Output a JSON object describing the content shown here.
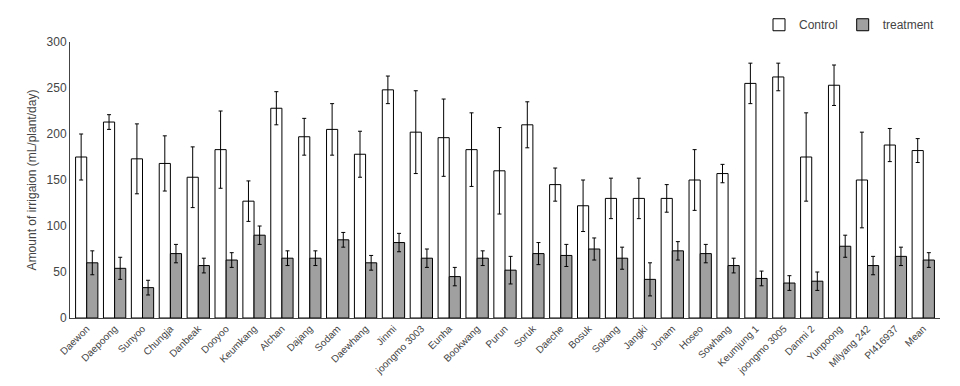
{
  "chart_data": {
    "type": "bar",
    "categories": [
      "Daewon",
      "Daepoong",
      "Sunyoo",
      "Chungja",
      "Danbeak",
      "Dooyoo",
      "Keumkang",
      "Alchan",
      "Dajang",
      "Sodam",
      "Daewhang",
      "Jinmi",
      "joongmo 3003",
      "Eunha",
      "Bookwang",
      "Purun",
      "Soruk",
      "Daeche",
      "Bosuk",
      "Sokang",
      "Jangki",
      "Jonam",
      "Hoseo",
      "Sowhang",
      "Keumjung 1",
      "joongmo 3005",
      "Danmi 2",
      "Yunpoong",
      "Milyang 242",
      "PI416937",
      "Mean"
    ],
    "series": [
      {
        "name": "Control",
        "color": "#FFFFFF",
        "values": [
          175,
          213,
          173,
          168,
          153,
          183,
          127,
          228,
          197,
          205,
          178,
          248,
          202,
          196,
          183,
          160,
          210,
          145,
          122,
          130,
          130,
          130,
          150,
          157,
          255,
          262,
          175,
          253,
          150,
          188,
          182
        ],
        "errors": [
          25,
          8,
          38,
          30,
          33,
          42,
          22,
          18,
          20,
          28,
          25,
          15,
          45,
          42,
          40,
          47,
          25,
          18,
          28,
          22,
          22,
          15,
          33,
          10,
          22,
          15,
          48,
          22,
          52,
          18,
          13
        ]
      },
      {
        "name": "treatment",
        "color": "#A0A0A0",
        "values": [
          60,
          54,
          33,
          70,
          57,
          63,
          90,
          65,
          65,
          85,
          60,
          82,
          65,
          45,
          65,
          52,
          70,
          68,
          75,
          65,
          42,
          73,
          70,
          57,
          43,
          38,
          40,
          78,
          57,
          67,
          63
        ],
        "errors": [
          13,
          12,
          8,
          10,
          8,
          8,
          10,
          8,
          8,
          8,
          8,
          10,
          10,
          10,
          8,
          15,
          12,
          12,
          12,
          12,
          18,
          10,
          10,
          8,
          8,
          8,
          10,
          12,
          10,
          10,
          8
        ]
      }
    ],
    "ylabel": "Amount of irrigaion (mL/plant/day)",
    "ylim": [
      0,
      300
    ],
    "yticks": [
      0,
      50,
      100,
      150,
      200,
      250,
      300
    ],
    "grid": false,
    "legend": "upper right"
  }
}
